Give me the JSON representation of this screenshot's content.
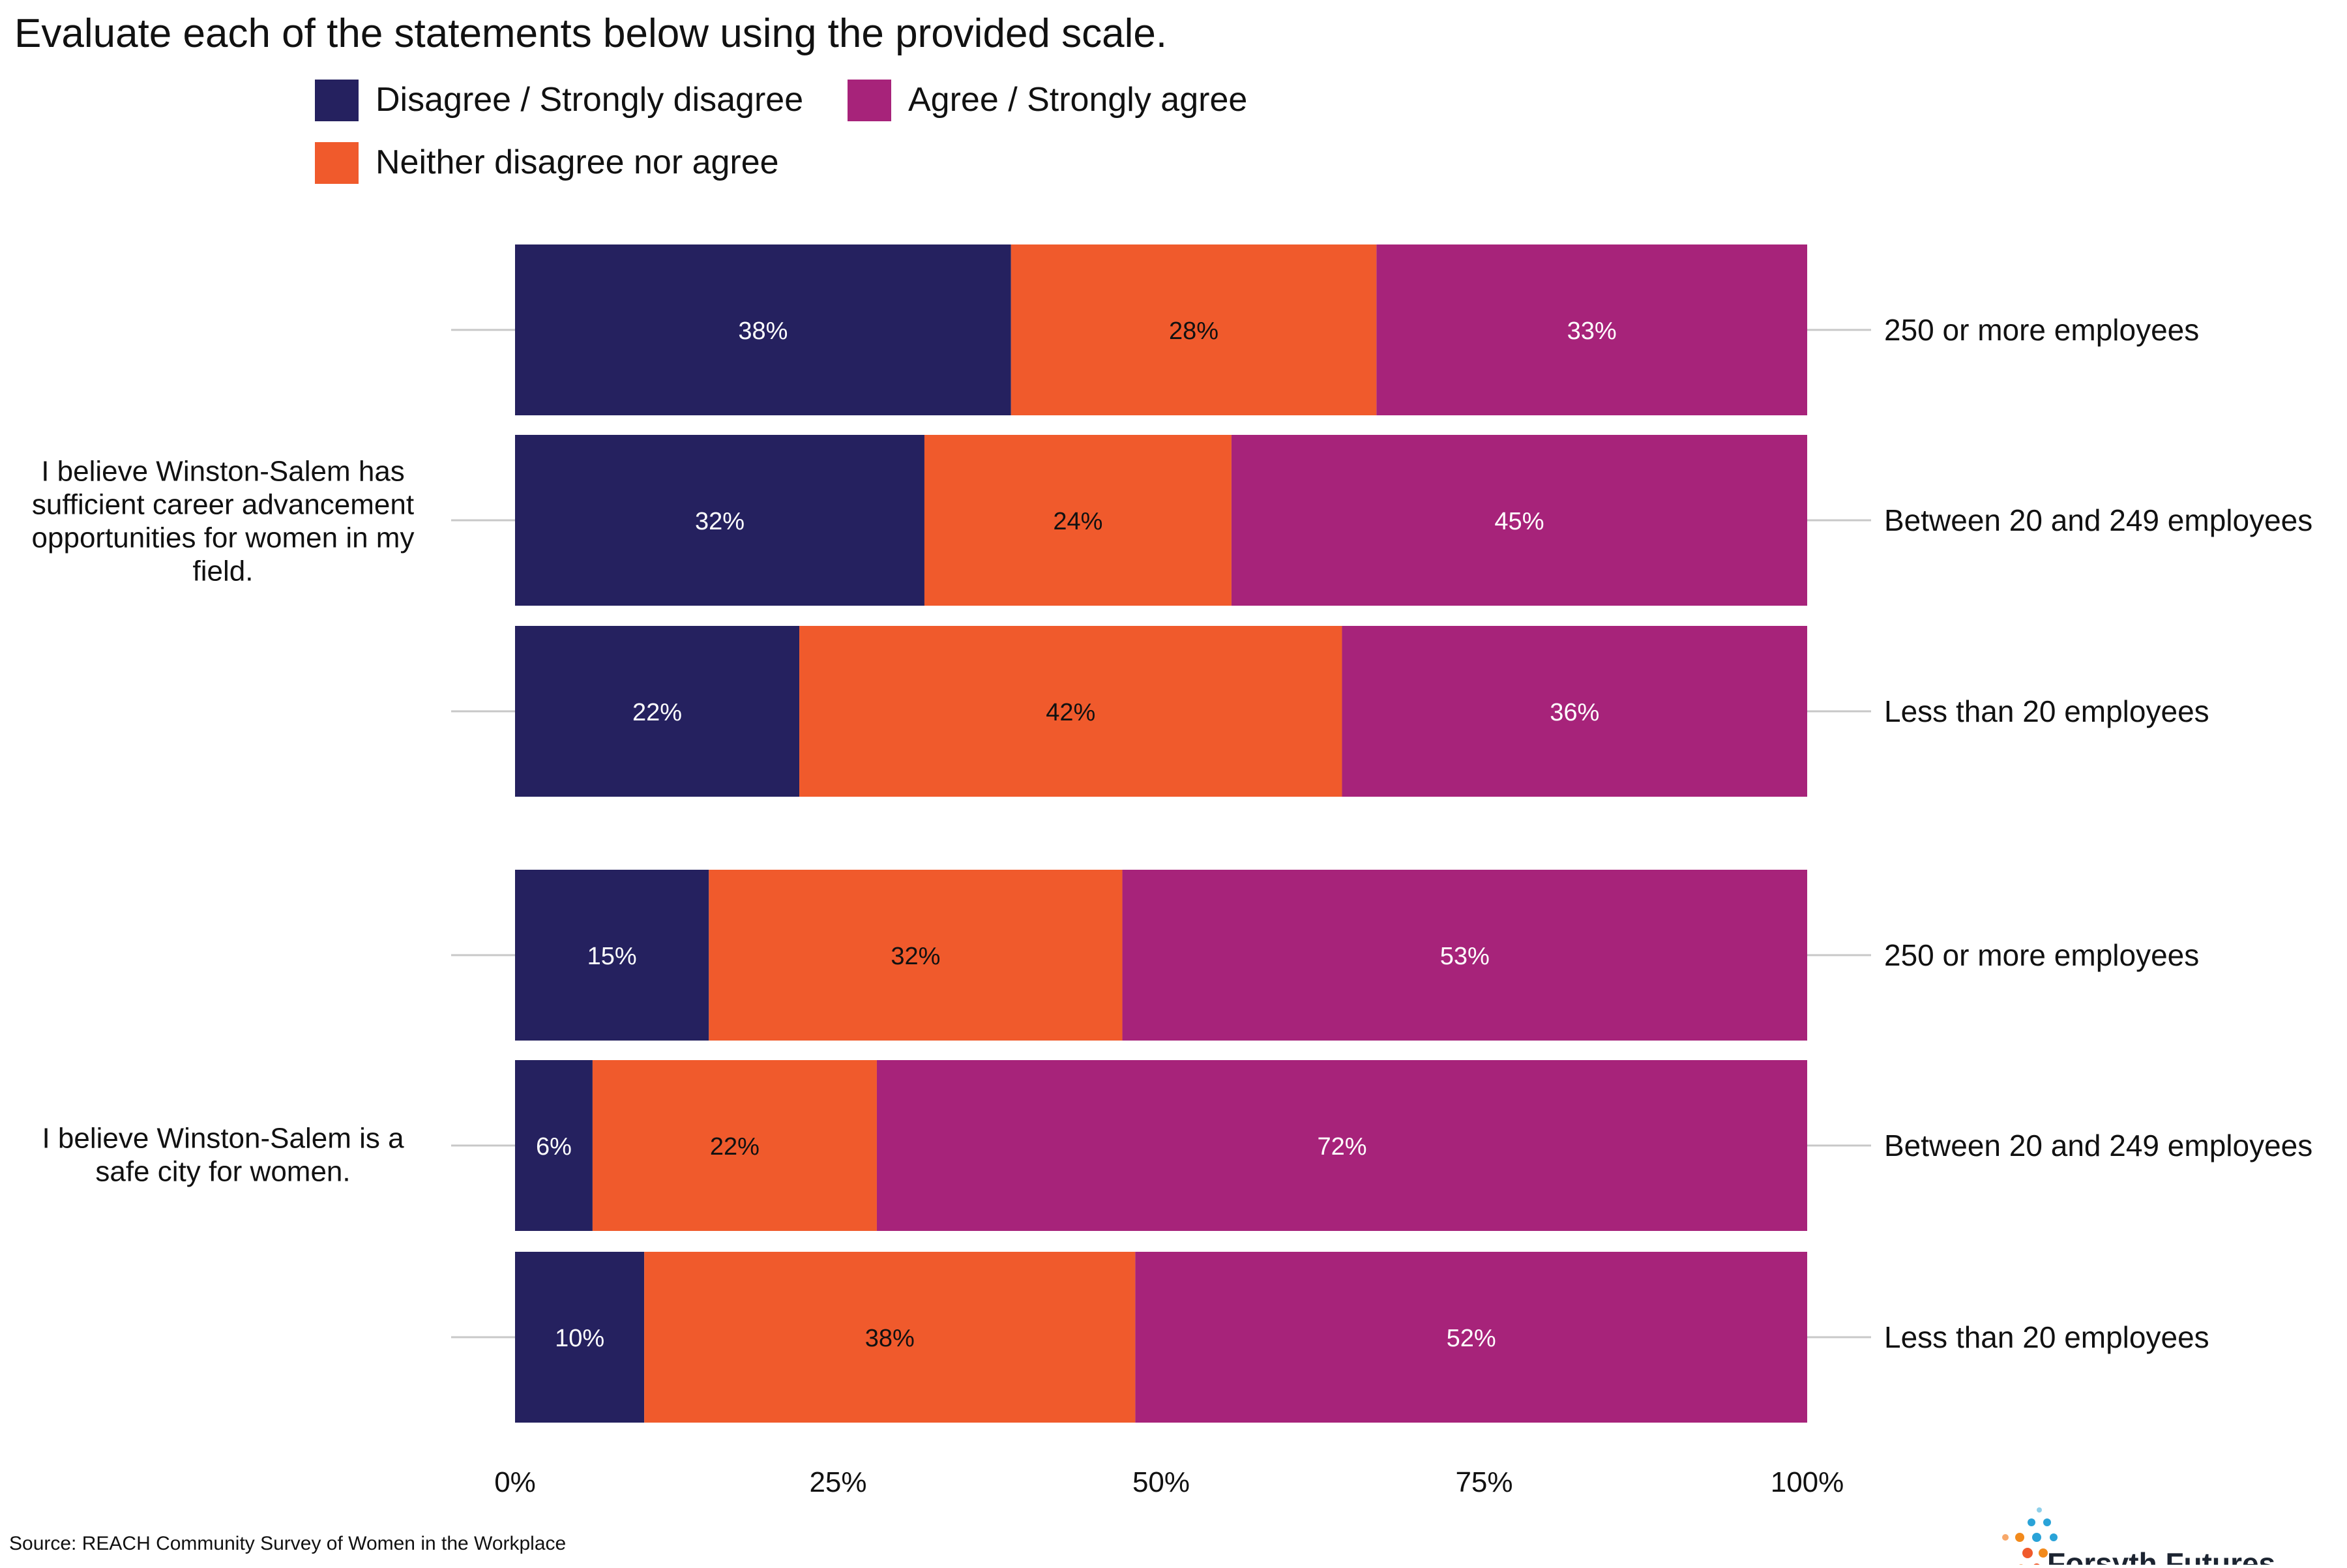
{
  "chart_data": {
    "type": "bar",
    "orientation": "horizontal",
    "stacked": true,
    "normalized": true,
    "title": "Evaluate each of the statements below using the provided scale.",
    "source": "Source: REACH Community Survey of Women in the Workplace",
    "brand": "Forsyth Futures",
    "legend_position": "top",
    "xlim": [
      0,
      100
    ],
    "x_ticks": [
      "0%",
      "25%",
      "50%",
      "75%",
      "100%"
    ],
    "x_tick_values": [
      0,
      25,
      50,
      75,
      100
    ],
    "grid": false,
    "series": [
      {
        "name": "Disagree / Strongly disagree",
        "color": "#25215f",
        "label_color": "#ffffff"
      },
      {
        "name": "Agree / Strongly agree",
        "color": "#a7237a",
        "label_color": "#ffffff"
      },
      {
        "name": "Neither disagree nor agree",
        "color": "#f05a2c",
        "label_color": "#111111"
      }
    ],
    "stack_order": [
      0,
      2,
      1
    ],
    "groups": [
      {
        "statement": "I believe Winston-Salem has sufficient career advancement opportunities for women in my field.",
        "statement_lines": [
          "I believe Winston-Salem has",
          "sufficient career advancement",
          "opportunities for women in my",
          "field."
        ],
        "bars": [
          {
            "category": "250 or more employees",
            "values": [
              38,
              33,
              28
            ]
          },
          {
            "category": "Between 20 and 249 employees",
            "values": [
              32,
              45,
              24
            ]
          },
          {
            "category": "Less than 20 employees",
            "values": [
              22,
              36,
              42
            ]
          }
        ]
      },
      {
        "statement": "I believe Winston-Salem is a safe city for women.",
        "statement_lines": [
          "I believe Winston-Salem is a",
          "safe city for women."
        ],
        "bars": [
          {
            "category": "250 or more employees",
            "values": [
              15,
              53,
              32
            ]
          },
          {
            "category": "Between 20 and 249 employees",
            "values": [
              6,
              72,
              22
            ]
          },
          {
            "category": "Less than 20 employees",
            "values": [
              10,
              52,
              38
            ]
          }
        ]
      }
    ]
  }
}
